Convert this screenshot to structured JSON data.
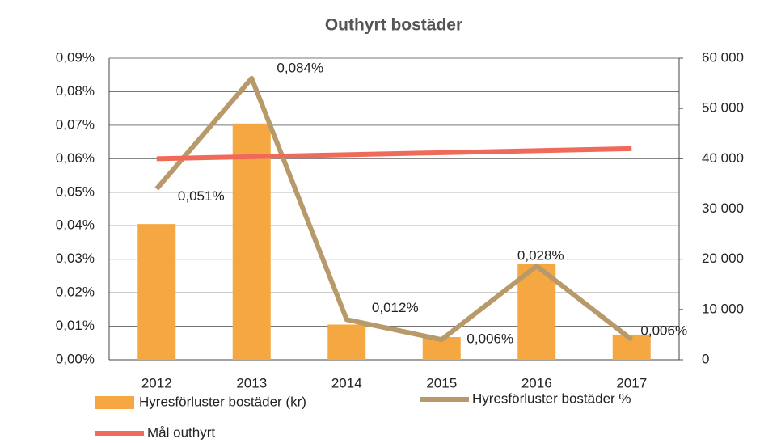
{
  "chart_data": {
    "type": "bar-line",
    "title": "Outhyrt bostäder",
    "categories": [
      "2012",
      "2013",
      "2014",
      "2015",
      "2016",
      "2017"
    ],
    "series": [
      {
        "name": "Hyresförluster bostäder (kr)",
        "type": "bar",
        "axis": "y2",
        "color": "#f5a742",
        "values": [
          27000,
          47000,
          7000,
          4500,
          19000,
          5000
        ]
      },
      {
        "name": "Hyresförluster  bostäder %",
        "type": "line",
        "axis": "y",
        "color": "#b89a6a",
        "values": [
          0.051,
          0.084,
          0.012,
          0.006,
          0.028,
          0.006
        ],
        "value_labels": [
          "0,051%",
          "0,084%",
          "0,012%",
          "0,006%",
          "0,028%",
          "0,006%"
        ]
      },
      {
        "name": "Mål outhyrt",
        "type": "line",
        "axis": "y",
        "color": "#f06a5a",
        "values": [
          0.06,
          0.0606,
          0.0612,
          0.0618,
          0.0624,
          0.063
        ]
      }
    ],
    "ylim": [
      0,
      0.09
    ],
    "yticks": [
      {
        "value": 0,
        "label": "0,00%"
      },
      {
        "value": 0.01,
        "label": "0,01%"
      },
      {
        "value": 0.02,
        "label": "0,02%"
      },
      {
        "value": 0.03,
        "label": "0,03%"
      },
      {
        "value": 0.04,
        "label": "0,04%"
      },
      {
        "value": 0.05,
        "label": "0,05%"
      },
      {
        "value": 0.06,
        "label": "0,06%"
      },
      {
        "value": 0.07,
        "label": "0,07%"
      },
      {
        "value": 0.08,
        "label": "0,08%"
      },
      {
        "value": 0.09,
        "label": "0,09%"
      }
    ],
    "y2lim": [
      0,
      60000
    ],
    "y2ticks": [
      0,
      {
        "value": 10000,
        "label": "10 000"
      },
      {
        "value": 20000,
        "label": "20 000"
      },
      {
        "value": 30000,
        "label": "30 000"
      },
      {
        "value": 40000,
        "label": "40 000"
      },
      {
        "value": 50000,
        "label": "50 000"
      },
      {
        "value": 60000,
        "label": "60 000"
      }
    ],
    "grid": true
  }
}
